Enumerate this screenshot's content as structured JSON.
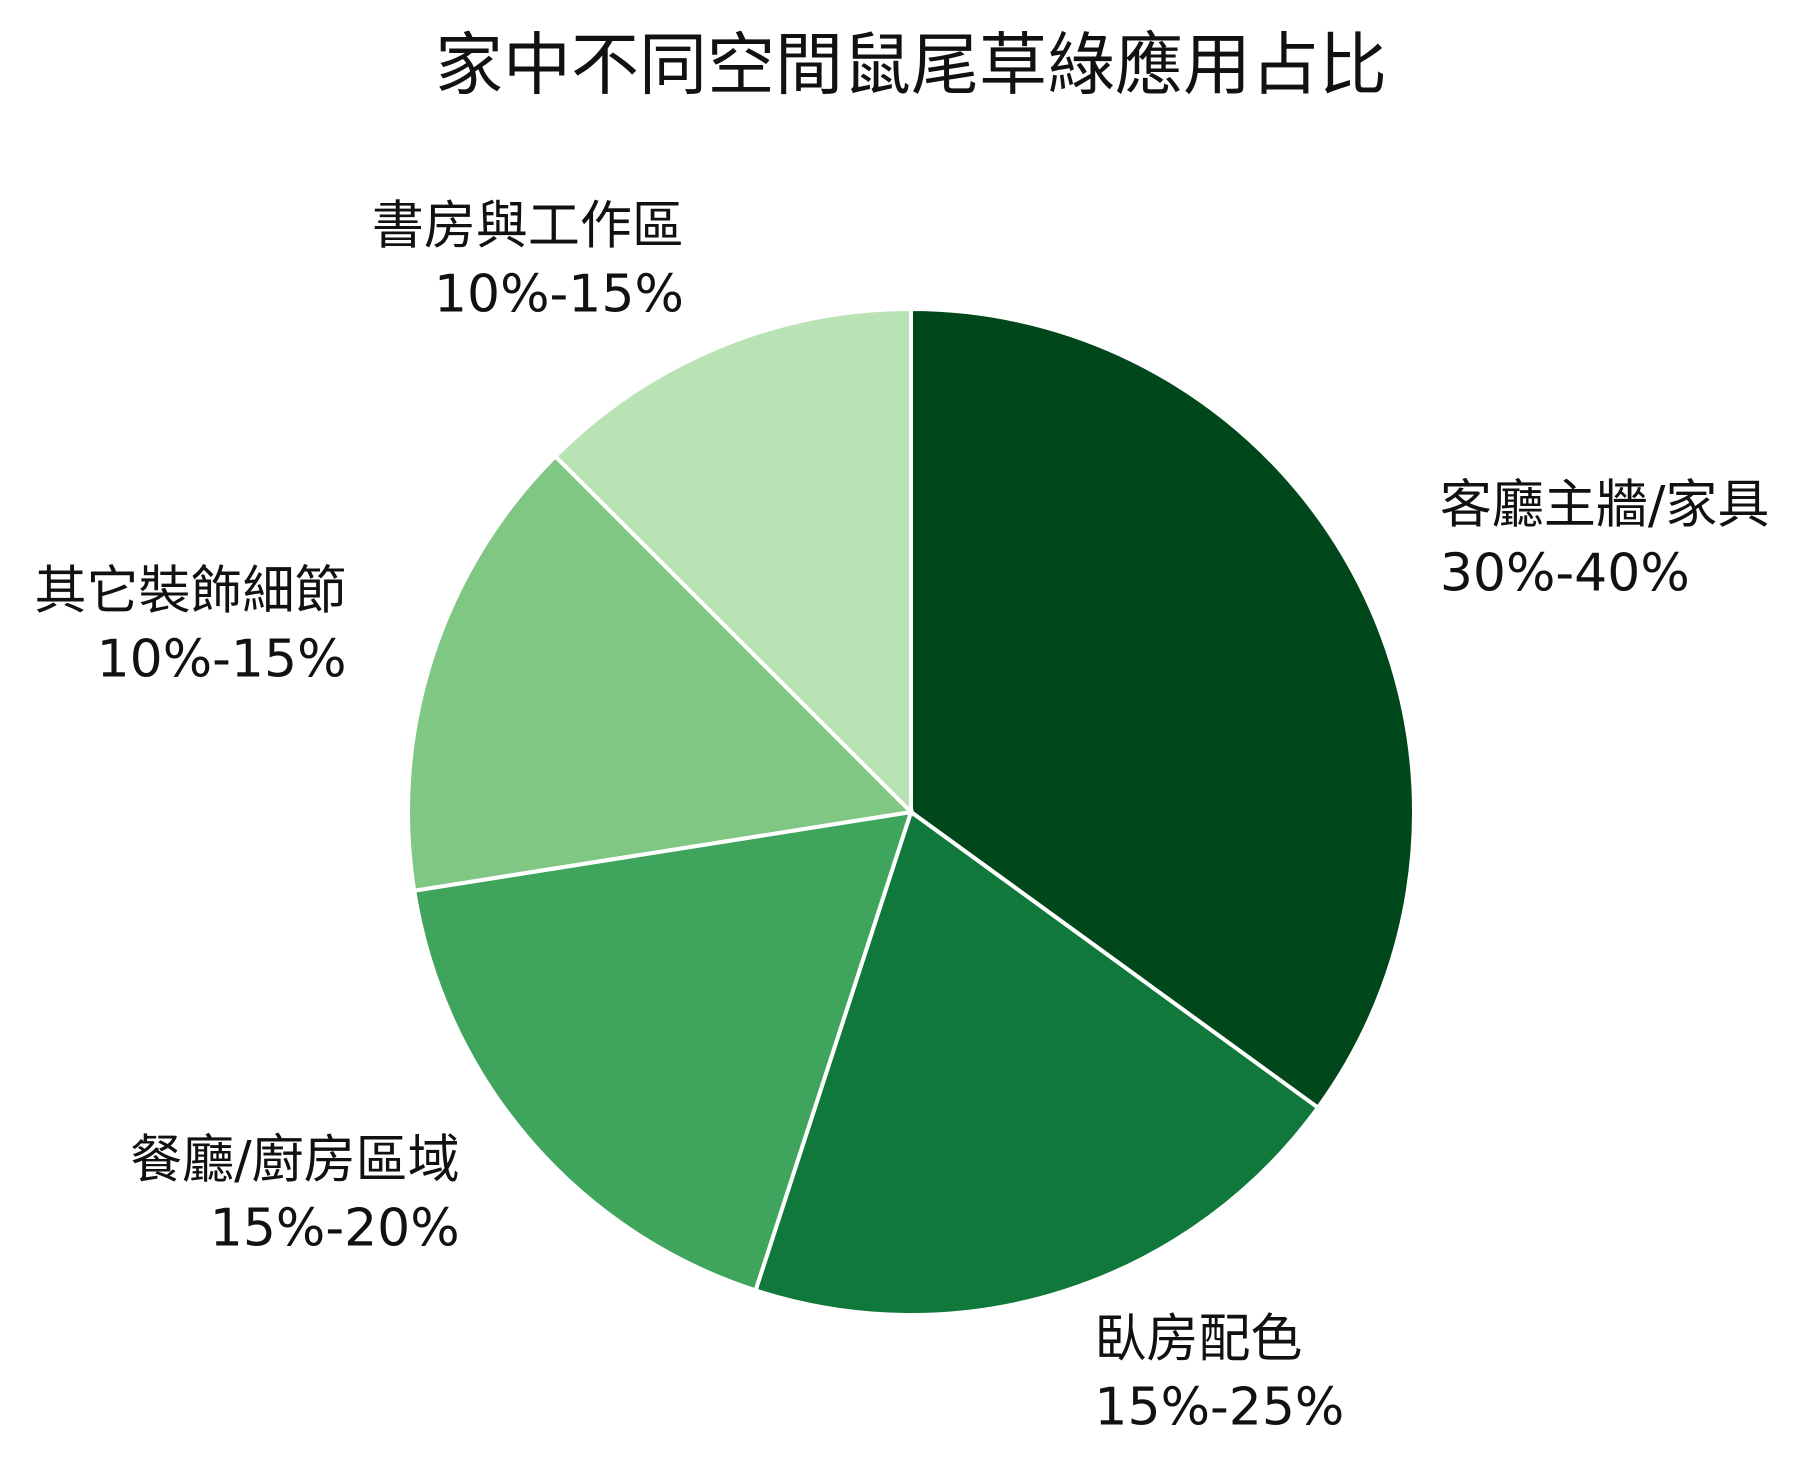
{
  "chart_data": {
    "type": "pie",
    "title": "家中不同空間鼠尾草綠應用占比",
    "categories": [
      "客廳主牆/家具",
      "臥房配色",
      "餐廳/廚房區域",
      "其它裝飾細節",
      "書房與工作區"
    ],
    "values": [
      35,
      20,
      17.5,
      15,
      12.5
    ],
    "value_labels": [
      "30%-40%",
      "15%-25%",
      "15%-20%",
      "10%-15%",
      "10%-15%"
    ],
    "colors": [
      "#00471b",
      "#10783a",
      "#3fa55d",
      "#80c783",
      "#b9e3b4"
    ]
  }
}
